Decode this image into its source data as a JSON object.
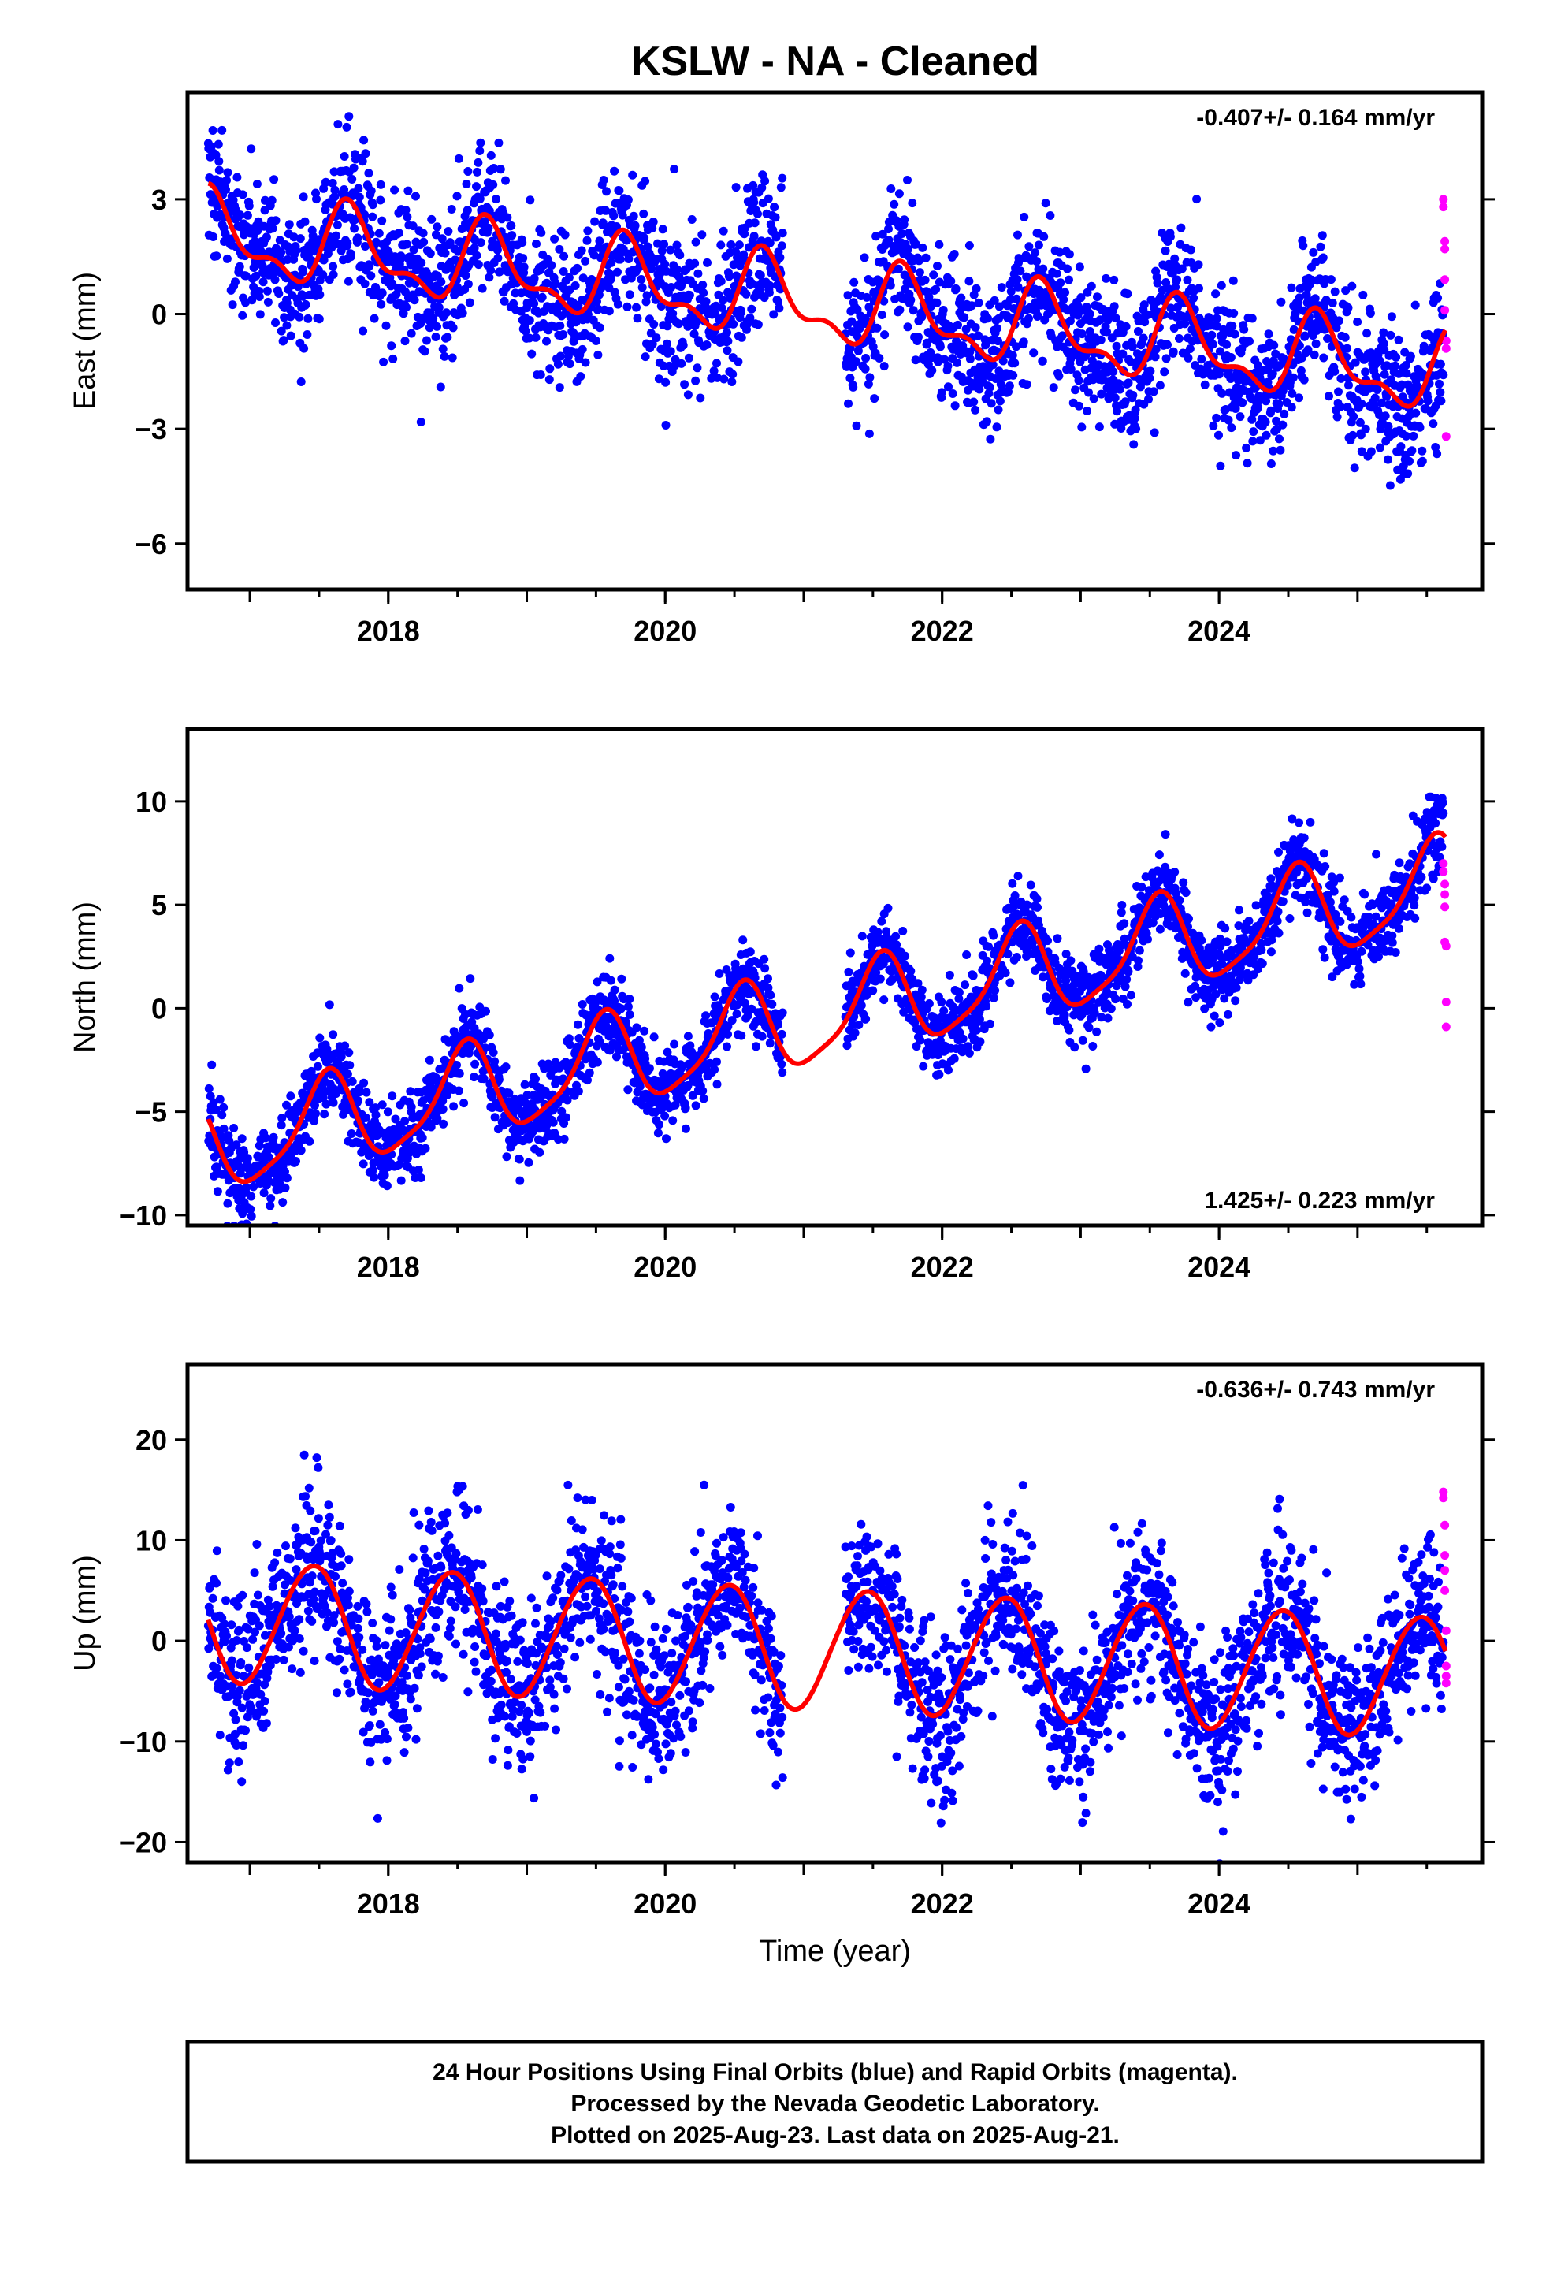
{
  "title": "KSLW  - NA - Cleaned",
  "colors": {
    "final": "#0000ff",
    "rapid": "#ff00ff",
    "fit": "#ff0000",
    "frame": "#000000"
  },
  "footer": {
    "line1": "24 Hour Positions Using Final Orbits (blue) and Rapid Orbits (magenta).",
    "line2": "Processed by the Nevada Geodetic Laboratory.",
    "line3": "Plotted on 2025-Aug-23. Last data on 2025-Aug-21."
  },
  "chart_data": [
    {
      "type": "scatter",
      "component": "east",
      "ylabel": "East (mm)",
      "xlabel": "",
      "xlim": [
        2016.55,
        2025.9
      ],
      "ylim": [
        -7.2,
        5.8
      ],
      "yticks": [
        3,
        0,
        -3,
        -6
      ],
      "xticks": [
        2018,
        2020,
        2022,
        2024
      ],
      "rate": "-0.407+/- 0.164 mm/yr",
      "rate_position": "top-right",
      "data_start": 2016.7,
      "data_end": 2025.64,
      "gaps": [
        [
          2020.85,
          2021.3
        ]
      ],
      "trend": {
        "offset": 2.05,
        "rate": -0.407,
        "ref_year": 2016.7
      },
      "annual": {
        "amp": 0.95,
        "phase": 2016.73
      },
      "semiannual": {
        "amp": 0.45,
        "phase": 2016.68
      },
      "noise_sd": 0.95,
      "rapid_points": [
        [
          2025.62,
          3.0
        ],
        [
          2025.62,
          2.8
        ],
        [
          2025.63,
          1.9
        ],
        [
          2025.63,
          1.7
        ],
        [
          2025.63,
          0.9
        ],
        [
          2025.63,
          0.1
        ],
        [
          2025.64,
          -0.7
        ],
        [
          2025.64,
          -0.9
        ],
        [
          2025.64,
          -3.2
        ]
      ]
    },
    {
      "type": "scatter",
      "component": "north",
      "ylabel": "North (mm)",
      "xlabel": "",
      "xlim": [
        2016.55,
        2025.9
      ],
      "ylim": [
        -10.5,
        13.5
      ],
      "yticks": [
        10,
        5,
        0,
        -5,
        -10
      ],
      "xticks": [
        2018,
        2020,
        2022,
        2024
      ],
      "rate": "1.425+/- 0.223 mm/yr",
      "rate_position": "bottom-right",
      "data_start": 2016.7,
      "data_end": 2025.64,
      "gaps": [
        [
          2020.85,
          2021.3
        ]
      ],
      "trend": {
        "offset": -6.8,
        "rate": 1.425,
        "ref_year": 2016.7
      },
      "annual": {
        "amp": 2.2,
        "phase": 2016.55
      },
      "semiannual": {
        "amp": 0.5,
        "phase": 2016.6
      },
      "noise_sd": 1.0,
      "rapid_points": [
        [
          2025.62,
          7.0
        ],
        [
          2025.62,
          6.6
        ],
        [
          2025.63,
          6.0
        ],
        [
          2025.63,
          5.5
        ],
        [
          2025.63,
          4.9
        ],
        [
          2025.63,
          3.2
        ],
        [
          2025.64,
          3.0
        ],
        [
          2025.64,
          0.3
        ],
        [
          2025.64,
          -0.9
        ]
      ]
    },
    {
      "type": "scatter",
      "component": "up",
      "ylabel": "Up (mm)",
      "xlabel": "Time (year)",
      "xlim": [
        2016.55,
        2025.9
      ],
      "ylim": [
        -22,
        27.5
      ],
      "yticks": [
        20,
        10,
        0,
        -10,
        -20
      ],
      "xticks": [
        2018,
        2020,
        2022,
        2024
      ],
      "rate": "-0.636+/- 0.743 mm/yr",
      "rate_position": "top-right",
      "data_start": 2016.7,
      "data_end": 2025.64,
      "gaps": [
        [
          2020.85,
          2021.3
        ]
      ],
      "trend": {
        "offset": 2.0,
        "rate": -0.636,
        "ref_year": 2016.7
      },
      "annual": {
        "amp": 6.0,
        "phase": 2016.45
      },
      "semiannual": {
        "amp": 0.3,
        "phase": 2016.6
      },
      "noise_sd": 4.0,
      "rapid_points": [
        [
          2025.62,
          14.8
        ],
        [
          2025.62,
          14.2
        ],
        [
          2025.63,
          11.5
        ],
        [
          2025.63,
          8.5
        ],
        [
          2025.63,
          7.0
        ],
        [
          2025.63,
          5.0
        ],
        [
          2025.64,
          1.0
        ],
        [
          2025.64,
          -2.5
        ],
        [
          2025.64,
          -3.5
        ],
        [
          2025.64,
          -4.2
        ]
      ]
    }
  ]
}
